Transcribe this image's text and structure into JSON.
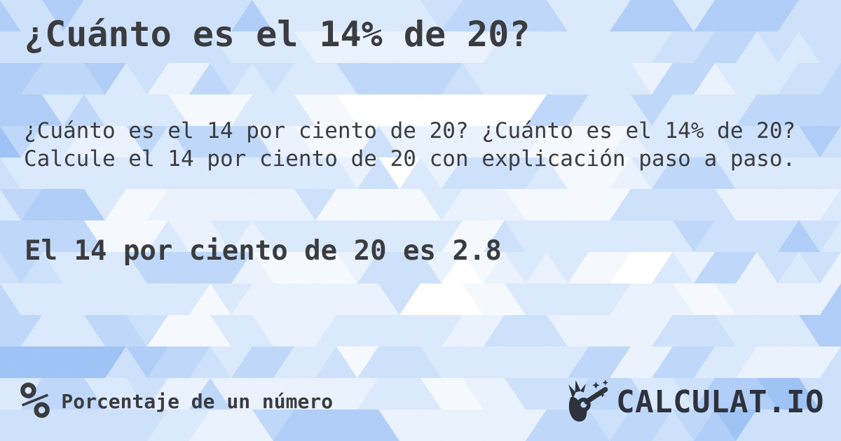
{
  "page": {
    "title": "¿Cuánto es el 14% de 20?",
    "description": "¿Cuánto es el 14 por ciento de 20? ¿Cuánto es el 14% de 20? Calcule el 14 por ciento de 20 con explicación paso a paso.",
    "answer": "El 14 por ciento de 20 es 2.8"
  },
  "footer": {
    "category_icon_glyph": "%",
    "category_label": "Porcentaje de un número",
    "brand": {
      "name": "CALCULAT.IO"
    }
  },
  "colors": {
    "text": "#3a3c40",
    "brand": "#2d323d",
    "background_palette": [
      "#ffffff",
      "#f5f9fe",
      "#e9f2fd",
      "#dbe9fc",
      "#cee1fb",
      "#bfd8f9",
      "#b0cef7",
      "#9fc3f4"
    ]
  }
}
